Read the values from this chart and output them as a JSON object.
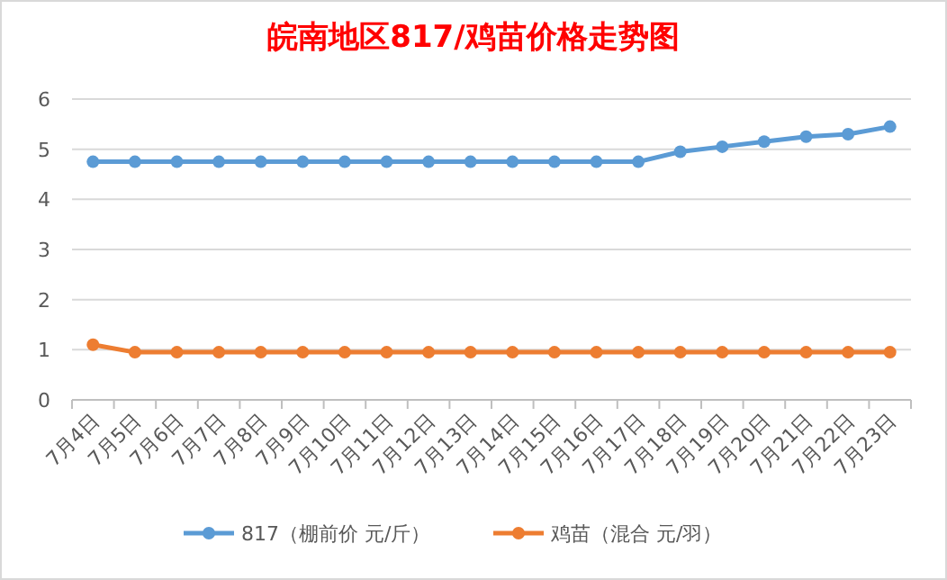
{
  "chart_data": {
    "type": "line",
    "title": "皖南地区817/鸡苗价格走势图",
    "categories": [
      "7月4日",
      "7月5日",
      "7月6日",
      "7月7日",
      "7月8日",
      "7月9日",
      "7月10日",
      "7月11日",
      "7月12日",
      "7月13日",
      "7月14日",
      "7月15日",
      "7月16日",
      "7月17日",
      "7月18日",
      "7月19日",
      "7月20日",
      "7月21日",
      "7月22日",
      "7月23日"
    ],
    "series": [
      {
        "name": "817（棚前价 元/斤）",
        "color": "#5b9bd5",
        "values": [
          4.75,
          4.75,
          4.75,
          4.75,
          4.75,
          4.75,
          4.75,
          4.75,
          4.75,
          4.75,
          4.75,
          4.75,
          4.75,
          4.75,
          4.95,
          5.05,
          5.15,
          5.25,
          5.3,
          5.45
        ]
      },
      {
        "name": "鸡苗（混合 元/羽）",
        "color": "#ed7d31",
        "values": [
          1.1,
          0.95,
          0.95,
          0.95,
          0.95,
          0.95,
          0.95,
          0.95,
          0.95,
          0.95,
          0.95,
          0.95,
          0.95,
          0.95,
          0.95,
          0.95,
          0.95,
          0.95,
          0.95,
          0.95
        ]
      }
    ],
    "ylim": [
      0,
      6
    ],
    "yticks": [
      0,
      1,
      2,
      3,
      4,
      5,
      6
    ],
    "grid": "y",
    "legend": "bottom",
    "marker": "circle",
    "line_style": "solid"
  }
}
